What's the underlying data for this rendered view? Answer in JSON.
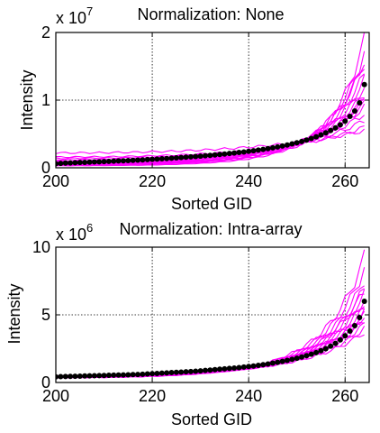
{
  "chart_data": [
    {
      "type": "line",
      "title": "Normalization: None",
      "xlabel": "Sorted GID",
      "ylabel": "Intensity",
      "exponent_base": "x 10",
      "exponent_power": "7",
      "xlim": [
        200,
        265
      ],
      "ylim": [
        0,
        2
      ],
      "xticks": [
        200,
        220,
        240,
        260
      ],
      "yticks": [
        0,
        1,
        2
      ],
      "grid": "dotted",
      "line_color": "#ff00ff",
      "marker_color": "#000000",
      "mean_series": {
        "name": "",
        "x": [
          200,
          201,
          202,
          203,
          204,
          205,
          206,
          207,
          208,
          209,
          210,
          211,
          212,
          213,
          214,
          215,
          216,
          217,
          218,
          219,
          220,
          221,
          222,
          223,
          224,
          225,
          226,
          227,
          228,
          229,
          230,
          231,
          232,
          233,
          234,
          235,
          236,
          237,
          238,
          239,
          240,
          241,
          242,
          243,
          244,
          245,
          246,
          247,
          248,
          249,
          250,
          251,
          252,
          253,
          254,
          255,
          256,
          257,
          258,
          259,
          260,
          261,
          262,
          263,
          264
        ],
        "y": [
          0.06,
          0.065,
          0.07,
          0.072,
          0.075,
          0.078,
          0.08,
          0.083,
          0.086,
          0.089,
          0.092,
          0.095,
          0.098,
          0.101,
          0.104,
          0.107,
          0.11,
          0.113,
          0.117,
          0.121,
          0.125,
          0.129,
          0.133,
          0.137,
          0.141,
          0.146,
          0.151,
          0.156,
          0.161,
          0.166,
          0.172,
          0.178,
          0.184,
          0.19,
          0.197,
          0.204,
          0.211,
          0.218,
          0.226,
          0.234,
          0.243,
          0.252,
          0.262,
          0.272,
          0.283,
          0.295,
          0.308,
          0.322,
          0.337,
          0.353,
          0.37,
          0.389,
          0.41,
          0.433,
          0.458,
          0.486,
          0.517,
          0.551,
          0.59,
          0.635,
          0.69,
          0.76,
          0.84,
          0.96,
          1.23
        ]
      },
      "profiles": [
        {
          "start": 0.03,
          "end": 1.9
        },
        {
          "start": 0.04,
          "end": 1.7
        },
        {
          "start": 0.05,
          "end": 1.55
        },
        {
          "start": 0.05,
          "end": 1.4
        },
        {
          "start": 0.06,
          "end": 1.3
        },
        {
          "start": 0.07,
          "end": 1.2
        },
        {
          "start": 0.08,
          "end": 1.1
        },
        {
          "start": 0.09,
          "end": 1.0
        },
        {
          "start": 0.1,
          "end": 0.9
        },
        {
          "start": 0.12,
          "end": 0.8
        },
        {
          "start": 0.14,
          "end": 0.7
        },
        {
          "start": 0.16,
          "end": 0.6
        },
        {
          "start": 0.22,
          "end": 0.55
        },
        {
          "start": 0.04,
          "end": 1.6
        },
        {
          "start": 0.06,
          "end": 1.05
        },
        {
          "start": 0.08,
          "end": 0.95
        }
      ]
    },
    {
      "type": "line",
      "title": "Normalization: Intra-array",
      "xlabel": "Sorted GID",
      "ylabel": "Intensity",
      "exponent_base": "x 10",
      "exponent_power": "6",
      "xlim": [
        200,
        265
      ],
      "ylim": [
        0,
        10
      ],
      "xticks": [
        200,
        220,
        240,
        260
      ],
      "yticks": [
        0,
        5,
        10
      ],
      "grid": "dotted",
      "line_color": "#ff00ff",
      "marker_color": "#000000",
      "mean_series": {
        "name": "",
        "x": [
          200,
          201,
          202,
          203,
          204,
          205,
          206,
          207,
          208,
          209,
          210,
          211,
          212,
          213,
          214,
          215,
          216,
          217,
          218,
          219,
          220,
          221,
          222,
          223,
          224,
          225,
          226,
          227,
          228,
          229,
          230,
          231,
          232,
          233,
          234,
          235,
          236,
          237,
          238,
          239,
          240,
          241,
          242,
          243,
          244,
          245,
          246,
          247,
          248,
          249,
          250,
          251,
          252,
          253,
          254,
          255,
          256,
          257,
          258,
          259,
          260,
          261,
          262,
          263,
          264
        ],
        "y": [
          0.42,
          0.43,
          0.44,
          0.45,
          0.46,
          0.47,
          0.48,
          0.49,
          0.5,
          0.51,
          0.52,
          0.53,
          0.54,
          0.55,
          0.56,
          0.57,
          0.58,
          0.59,
          0.61,
          0.63,
          0.65,
          0.67,
          0.69,
          0.71,
          0.73,
          0.75,
          0.77,
          0.79,
          0.81,
          0.83,
          0.86,
          0.89,
          0.92,
          0.95,
          0.98,
          1.01,
          1.04,
          1.07,
          1.1,
          1.14,
          1.18,
          1.22,
          1.27,
          1.32,
          1.37,
          1.43,
          1.49,
          1.56,
          1.63,
          1.71,
          1.79,
          1.88,
          1.98,
          2.09,
          2.21,
          2.35,
          2.5,
          2.68,
          2.89,
          3.15,
          3.45,
          3.8,
          4.2,
          4.8,
          6.0
        ]
      },
      "profiles": [
        {
          "start": 0.35,
          "end": 9.3
        },
        {
          "start": 0.37,
          "end": 8.4
        },
        {
          "start": 0.38,
          "end": 7.6
        },
        {
          "start": 0.39,
          "end": 7.0
        },
        {
          "start": 0.4,
          "end": 6.5
        },
        {
          "start": 0.41,
          "end": 6.1
        },
        {
          "start": 0.42,
          "end": 5.8
        },
        {
          "start": 0.43,
          "end": 5.5
        },
        {
          "start": 0.44,
          "end": 5.2
        },
        {
          "start": 0.45,
          "end": 4.9
        },
        {
          "start": 0.46,
          "end": 4.6
        },
        {
          "start": 0.47,
          "end": 4.3
        },
        {
          "start": 0.48,
          "end": 4.0
        },
        {
          "start": 0.5,
          "end": 3.7
        },
        {
          "start": 0.39,
          "end": 6.8
        },
        {
          "start": 0.44,
          "end": 5.0
        }
      ]
    }
  ]
}
